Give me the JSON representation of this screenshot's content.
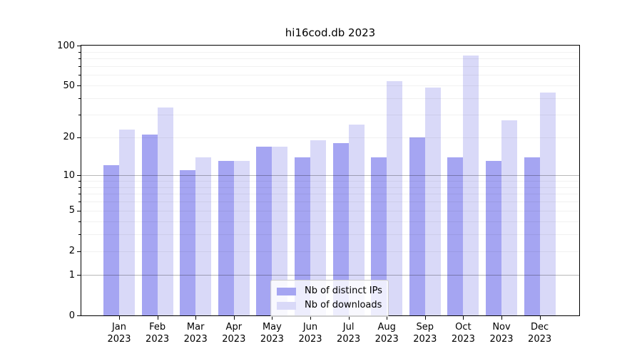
{
  "title": "hi16cod.db 2023",
  "chart_data": {
    "type": "bar",
    "title": "hi16cod.db 2023",
    "categories": [
      "Jan",
      "Feb",
      "Mar",
      "Apr",
      "May",
      "Jun",
      "Jul",
      "Aug",
      "Sep",
      "Oct",
      "Nov",
      "Dec"
    ],
    "year": "2023",
    "series": [
      {
        "name": "Nb of distinct IPs",
        "color": "#a5a5f2",
        "values": [
          12,
          21,
          11,
          13,
          17,
          14,
          18,
          14,
          20,
          14,
          13,
          14
        ]
      },
      {
        "name": "Nb of downloads",
        "color": "#d9d9f8",
        "values": [
          23,
          34,
          14,
          13,
          17,
          19,
          25,
          54,
          48,
          84,
          27,
          44
        ]
      }
    ],
    "scale": "log10(1+v)",
    "ylim": [
      0,
      100
    ],
    "y_tick_labels": [
      100,
      50,
      20,
      10,
      5,
      2,
      1,
      0
    ],
    "y_major_gridlines": [
      1,
      10
    ],
    "y_minor_gridlines": [
      2,
      3,
      4,
      5,
      6,
      7,
      8,
      9,
      20,
      30,
      40,
      50,
      60,
      70,
      80,
      90
    ],
    "grid": true,
    "legend_position": "bottom-center",
    "colors": {
      "spine": "#000000",
      "minor_grid": "rgba(0,0,0,0.055)",
      "major_grid": "rgba(0,0,0,0.28)",
      "legend_border": "#cccccc",
      "background": "#ffffff"
    }
  }
}
